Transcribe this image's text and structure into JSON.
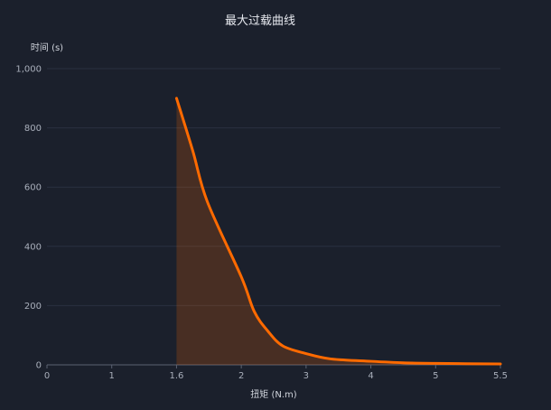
{
  "chart_data": {
    "type": "area",
    "title": "最大过载曲线",
    "xlabel": "扭矩 (N.m)",
    "ylabel": "时间 (s)",
    "x_ticks": [
      "0",
      "1",
      "1.6",
      "2",
      "3",
      "4",
      "5",
      "5.5"
    ],
    "y_ticks": [
      "0",
      "200",
      "400",
      "600",
      "800",
      "1,000"
    ],
    "ylim": [
      0,
      1000
    ],
    "grid": true,
    "series": [
      {
        "x": [
          1.6,
          1.7,
          1.79,
          2.0,
          2.2,
          2.41,
          2.64,
          3.0,
          3.38,
          4.0,
          4.5,
          5.0,
          5.5
        ],
        "y": [
          900,
          723,
          551,
          297,
          180,
          114,
          64,
          38,
          20,
          12,
          7,
          5,
          3
        ]
      }
    ],
    "colors": {
      "line": "#ff6a00",
      "fill": "#ff6a00",
      "grid": "#2a3140",
      "background": "#1b202c"
    }
  }
}
